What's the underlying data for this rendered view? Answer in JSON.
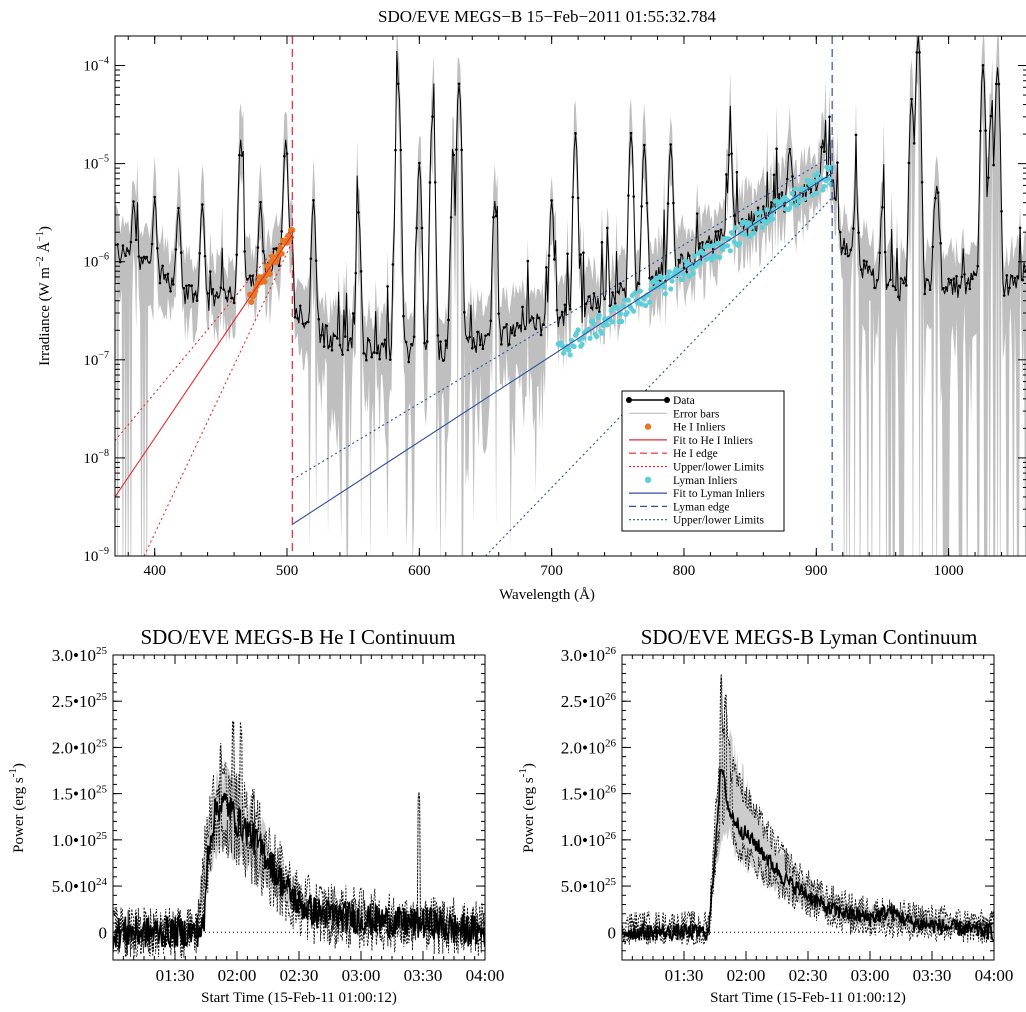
{
  "chart_data": [
    {
      "type": "line",
      "title": "SDO/EVE MEGS−B 15−Feb−2011 01:55:32.784",
      "xlabel": "Wavelength (Å)",
      "ylabel_main": "Irradiance (W m",
      "ylabel_mid": " Å",
      "ylabel_end": ")",
      "ylabel_sup1": "−2",
      "ylabel_sup2": "−1",
      "xlim": [
        370,
        1060
      ],
      "ylim": [
        1e-09,
        0.0002
      ],
      "log_y": true,
      "x_ticks": [
        "400",
        "500",
        "600",
        "700",
        "800",
        "900",
        "1000"
      ],
      "y_ticks": [
        {
          "base": "10",
          "exp": "−9",
          "value": 1e-09
        },
        {
          "base": "10",
          "exp": "−8",
          "value": 1e-08
        },
        {
          "base": "10",
          "exp": "−7",
          "value": 1e-07
        },
        {
          "base": "10",
          "exp": "−6",
          "value": 1e-06
        },
        {
          "base": "10",
          "exp": "−5",
          "value": 1e-05
        },
        {
          "base": "10",
          "exp": "−4",
          "value": 0.0001
        }
      ],
      "continuum_base": [
        [
          370,
          1.3e-06
        ],
        [
          380,
          1.1e-06
        ],
        [
          400,
          8e-07
        ],
        [
          420,
          5e-07
        ],
        [
          440,
          4e-07
        ],
        [
          460,
          5e-07
        ],
        [
          480,
          8e-07
        ],
        [
          500,
          1.4e-06
        ],
        [
          504,
          2e-06
        ],
        [
          506,
          3e-07
        ],
        [
          520,
          2e-07
        ],
        [
          540,
          1.5e-07
        ],
        [
          560,
          1.3e-07
        ],
        [
          580,
          1.3e-07
        ],
        [
          600,
          1.2e-07
        ],
        [
          620,
          1.3e-07
        ],
        [
          640,
          1.5e-07
        ],
        [
          660,
          1.7e-07
        ],
        [
          680,
          2e-07
        ],
        [
          700,
          2.5e-07
        ],
        [
          720,
          3e-07
        ],
        [
          740,
          4e-07
        ],
        [
          760,
          5e-07
        ],
        [
          780,
          7e-07
        ],
        [
          800,
          1e-06
        ],
        [
          820,
          1.4e-06
        ],
        [
          840,
          2e-06
        ],
        [
          860,
          3e-06
        ],
        [
          880,
          4.2e-06
        ],
        [
          900,
          5.5e-06
        ],
        [
          912,
          7e-06
        ],
        [
          918,
          1.5e-06
        ],
        [
          940,
          7e-07
        ],
        [
          960,
          5e-07
        ],
        [
          980,
          6e-07
        ],
        [
          1000,
          5e-07
        ],
        [
          1020,
          6e-07
        ],
        [
          1040,
          5e-07
        ],
        [
          1060,
          8e-07
        ]
      ],
      "emission_lines": [
        [
          384,
          3e-06
        ],
        [
          400,
          3.5e-06
        ],
        [
          418,
          3e-06
        ],
        [
          436,
          3.5e-06
        ],
        [
          465,
          1.7e-05
        ],
        [
          480,
          3e-06
        ],
        [
          499,
          1.6e-05
        ],
        [
          520,
          4e-06
        ],
        [
          554,
          3e-06
        ],
        [
          584,
          6.5e-05
        ],
        [
          600,
          1e-05
        ],
        [
          610,
          3e-05
        ],
        [
          625,
          4e-06
        ],
        [
          630,
          6.5e-05
        ],
        [
          657,
          4e-06
        ],
        [
          700,
          4e-06
        ],
        [
          718,
          2e-05
        ],
        [
          760,
          2e-05
        ],
        [
          770,
          1.5e-05
        ],
        [
          790,
          1.5e-05
        ],
        [
          835,
          1.5e-05
        ],
        [
          880,
          1e-05
        ],
        [
          905,
          1e-05
        ],
        [
          930,
          4e-06
        ],
        [
          950,
          3e-06
        ],
        [
          972,
          4.5e-05
        ],
        [
          977,
          0.0002
        ],
        [
          990,
          4e-06
        ],
        [
          1026,
          0.0001
        ],
        [
          1032,
          3e-05
        ],
        [
          1037,
          9.5e-05
        ]
      ],
      "he_fit": {
        "x0": 370,
        "y0": 4e-09,
        "x1": 504,
        "y1": 1.9e-06
      },
      "he_upper": {
        "x0": 370,
        "y0": 1.5e-08,
        "x1": 504,
        "y1": 2.2e-06
      },
      "he_lower": {
        "x0": 392,
        "y0": 1e-09,
        "x1": 504,
        "y1": 1.6e-06
      },
      "he_edge": 504,
      "he_inliers_range": [
        472,
        504
      ],
      "ly_fit": {
        "x0": 504,
        "y0": 2.1e-09,
        "x1": 912,
        "y1": 8e-06
      },
      "ly_upper": {
        "x0": 504,
        "y0": 6e-09,
        "x1": 912,
        "y1": 1.2e-05
      },
      "ly_lower": {
        "x0": 650,
        "y0": 1e-09,
        "x1": 912,
        "y1": 4.5e-06
      },
      "ly_edge": 912,
      "ly_inliers_range": [
        705,
        912
      ],
      "legend": {
        "placement": "lower-center-right",
        "items": [
          {
            "label": "Data",
            "style": "data"
          },
          {
            "label": "Error bars",
            "style": "errbar"
          },
          {
            "label": "He I Inliers",
            "style": "dot",
            "color": "#e87722"
          },
          {
            "label": "Fit to He I Inliers",
            "style": "solid",
            "color": "#e8292d"
          },
          {
            "label": "He I edge",
            "style": "dashed",
            "color": "#e8292d"
          },
          {
            "label": "Upper/lower Limits",
            "style": "dotted",
            "color": "#e8292d"
          },
          {
            "label": "Lyman Inliers",
            "style": "dot",
            "color": "#5ecfd8"
          },
          {
            "label": "Fit to Lyman Inliers",
            "style": "solid",
            "color": "#2f4fa3"
          },
          {
            "label": "Lyman edge",
            "style": "dashed",
            "color": "#2f4fa3"
          },
          {
            "label": "Upper/lower Limits",
            "style": "dotted",
            "color": "#2f4fa3"
          }
        ]
      },
      "colors": {
        "he": "#e8292d",
        "he_dot": "#e87722",
        "ly": "#2f4fa3",
        "ly_dot": "#5ecfd8",
        "err": "#bfbfbf"
      }
    },
    {
      "type": "line",
      "title": "SDO/EVE MEGS-B He I Continuum",
      "xlabel": "Start Time (15-Feb-11 01:00:12)",
      "ylabel": "Power (erg s",
      "ylabel_sup": "-1",
      "ylabel_end": ")",
      "x_unit": "minutes since start",
      "xlim": [
        0,
        180
      ],
      "ylim": [
        -3e+24,
        3e+25
      ],
      "x_ticks": [
        {
          "label": "01:30",
          "value": 30
        },
        {
          "label": "02:00",
          "value": 60
        },
        {
          "label": "02:30",
          "value": 90
        },
        {
          "label": "03:00",
          "value": 120
        },
        {
          "label": "03:30",
          "value": 150
        },
        {
          "label": "04:00",
          "value": 180
        }
      ],
      "y_ticks": [
        {
          "label": "0",
          "value": 0
        },
        {
          "label": "5.0•10",
          "exp": "24",
          "value": 5e+24
        },
        {
          "label": "1.0•10",
          "exp": "25",
          "value": 1e+25
        },
        {
          "label": "1.5•10",
          "exp": "25",
          "value": 1.5e+25
        },
        {
          "label": "2.0•10",
          "exp": "25",
          "value": 2e+25
        },
        {
          "label": "2.5•10",
          "exp": "25",
          "value": 2.5e+25
        },
        {
          "label": "3.0•10",
          "exp": "25",
          "value": 3e+25
        }
      ],
      "profile": [
        [
          0,
          0
        ],
        [
          40,
          0
        ],
        [
          44,
          5e+23
        ],
        [
          46,
          9e+24
        ],
        [
          50,
          1.35e+25
        ],
        [
          55,
          1.4e+25
        ],
        [
          60,
          1.2e+25
        ],
        [
          65,
          1.1e+25
        ],
        [
          70,
          9.5e+24
        ],
        [
          75,
          8e+24
        ],
        [
          80,
          6e+24
        ],
        [
          90,
          3e+24
        ],
        [
          100,
          2e+24
        ],
        [
          120,
          1.5e+24
        ],
        [
          140,
          1e+24
        ],
        [
          150,
          1e+24
        ],
        [
          155,
          1e+24
        ],
        [
          160,
          5e+23
        ],
        [
          180,
          0
        ]
      ],
      "band": [
        [
          40,
          0,
          0
        ],
        [
          46,
          7e+24,
          1.3e+25
        ],
        [
          52,
          1.1e+25,
          1.7e+25
        ],
        [
          60,
          9e+24,
          1.5e+25
        ],
        [
          70,
          7e+24,
          1.2e+25
        ],
        [
          80,
          4.5e+24,
          7.5e+24
        ],
        [
          90,
          2e+24,
          4e+24
        ],
        [
          100,
          1e+24,
          3e+24
        ],
        [
          120,
          8e+23,
          2.2e+24
        ],
        [
          140,
          5e+23,
          1.6e+24
        ],
        [
          180,
          0,
          1e+24
        ]
      ],
      "spikes": [
        [
          52,
          2.05e+25
        ],
        [
          58,
          2.3e+25
        ],
        [
          62,
          2.3e+25
        ],
        [
          68,
          1.6e+25
        ],
        [
          148,
          1.55e+25
        ]
      ],
      "noise_amp": 3.5e+24
    },
    {
      "type": "line",
      "title": "SDO/EVE MEGS-B Lyman Continuum",
      "xlabel": "Start Time (15-Feb-11 01:00:12)",
      "ylabel": "Power (erg s",
      "ylabel_sup": "-1",
      "ylabel_end": ")",
      "x_unit": "minutes since start",
      "xlim": [
        0,
        180
      ],
      "ylim": [
        -3e+25,
        3e+26
      ],
      "x_ticks": [
        {
          "label": "01:30",
          "value": 30
        },
        {
          "label": "02:00",
          "value": 60
        },
        {
          "label": "02:30",
          "value": 90
        },
        {
          "label": "03:00",
          "value": 120
        },
        {
          "label": "03:30",
          "value": 150
        },
        {
          "label": "04:00",
          "value": 180
        }
      ],
      "y_ticks": [
        {
          "label": "0",
          "value": 0
        },
        {
          "label": "5.0•10",
          "exp": "25",
          "value": 5e+25
        },
        {
          "label": "1.0•10",
          "exp": "26",
          "value": 1e+26
        },
        {
          "label": "1.5•10",
          "exp": "26",
          "value": 1.5e+26
        },
        {
          "label": "2.0•10",
          "exp": "26",
          "value": 2e+26
        },
        {
          "label": "2.5•10",
          "exp": "26",
          "value": 2.5e+26
        },
        {
          "label": "3.0•10",
          "exp": "26",
          "value": 3e+26
        }
      ],
      "profile": [
        [
          0,
          0
        ],
        [
          42,
          0
        ],
        [
          46,
          1.2e+26
        ],
        [
          48,
          1.8e+26
        ],
        [
          52,
          1.3e+26
        ],
        [
          58,
          1.1e+26
        ],
        [
          65,
          9.5e+25
        ],
        [
          72,
          7.5e+25
        ],
        [
          80,
          5.5e+25
        ],
        [
          90,
          4e+25
        ],
        [
          100,
          2.5e+25
        ],
        [
          120,
          1.5e+25
        ],
        [
          130,
          2.3e+25
        ],
        [
          140,
          1e+25
        ],
        [
          160,
          5e+24
        ],
        [
          180,
          0
        ]
      ],
      "band": [
        [
          42,
          0,
          1e+25
        ],
        [
          46,
          9e+25,
          1.6e+26
        ],
        [
          50,
          1.3e+26,
          2.4e+26
        ],
        [
          56,
          9e+25,
          1.7e+26
        ],
        [
          65,
          7e+25,
          1.3e+26
        ],
        [
          75,
          5e+25,
          9.5e+25
        ],
        [
          85,
          3.5e+25,
          6.5e+25
        ],
        [
          95,
          2.5e+25,
          4.5e+25
        ],
        [
          110,
          1e+25,
          3e+25
        ],
        [
          140,
          5e+24,
          2e+25
        ],
        [
          180,
          0,
          1e+25
        ]
      ],
      "spikes": [
        [
          48,
          2.8e+26
        ],
        [
          50,
          2.65e+26
        ],
        [
          53,
          1.8e+26
        ]
      ],
      "noise_amp": 1.8e+25
    }
  ]
}
